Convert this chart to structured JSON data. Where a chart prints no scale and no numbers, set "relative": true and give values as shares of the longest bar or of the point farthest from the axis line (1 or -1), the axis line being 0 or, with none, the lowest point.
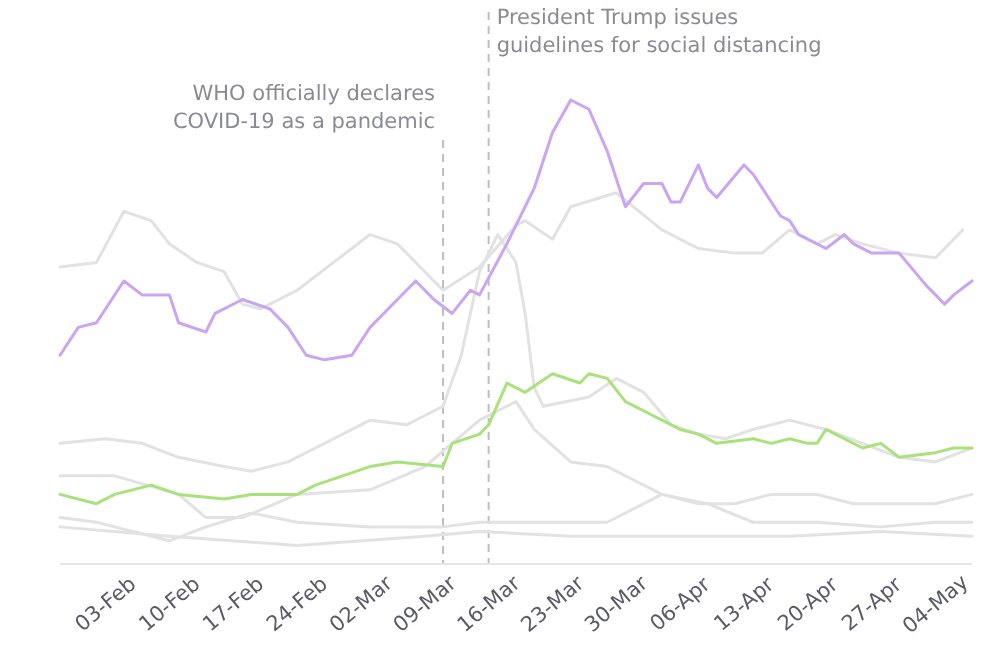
{
  "chart_data": {
    "type": "line",
    "relative": true,
    "grid": false,
    "tick_labels": "x",
    "line_style": "solid",
    "xlim": [
      "--01-29",
      "--05-08"
    ],
    "xticks": [
      {
        "value": "--02-03",
        "label": "03-Feb"
      },
      {
        "value": "--02-10",
        "label": "10-Feb"
      },
      {
        "value": "--02-17",
        "label": "17-Feb"
      },
      {
        "value": "--02-24",
        "label": "24-Feb"
      },
      {
        "value": "--03-02",
        "label": "02-Mar"
      },
      {
        "value": "--03-09",
        "label": "09-Mar"
      },
      {
        "value": "--03-16",
        "label": "16-Mar"
      },
      {
        "value": "--03-23",
        "label": "23-Mar"
      },
      {
        "value": "--03-30",
        "label": "30-Mar"
      },
      {
        "value": "--04-06",
        "label": "06-Apr"
      },
      {
        "value": "--04-13",
        "label": "13-Apr"
      },
      {
        "value": "--04-20",
        "label": "20-Apr"
      },
      {
        "value": "--04-27",
        "label": "27-Apr"
      },
      {
        "value": "--05-04",
        "label": "04-May"
      }
    ],
    "ref_lines": [
      {
        "axis": "x",
        "value": "--03-11",
        "label": "WHO officially declares\nCOVID-19 as a pandemic",
        "color": "#bdbdc4",
        "line_style": "dashed"
      },
      {
        "axis": "x",
        "value": "--03-16",
        "label": "President Trump issues\nguidelines for social distancing",
        "color": "#bdbdc4",
        "line_style": "dashed"
      }
    ],
    "series": [
      {
        "color": "#e2e2e2",
        "x": [
          "--01-29",
          "--02-02",
          "--02-05",
          "--02-08",
          "--02-10",
          "--02-13",
          "--02-16",
          "--02-18",
          "--02-20",
          "--02-24",
          "--02-28",
          "--03-03",
          "--03-06",
          "--03-09",
          "--03-11",
          "--03-15",
          "--03-19",
          "--03-20",
          "--03-23",
          "--03-25",
          "--03-30",
          "--04-04",
          "--04-08",
          "--04-12",
          "--04-15",
          "--04-18",
          "--04-21",
          "--04-23",
          "--04-26",
          "--04-30",
          "--05-04",
          "--05-07"
        ],
        "values": [
          0.64,
          0.65,
          0.76,
          0.74,
          0.69,
          0.65,
          0.63,
          0.56,
          0.55,
          0.59,
          0.65,
          0.71,
          0.69,
          0.63,
          0.59,
          0.64,
          0.73,
          0.74,
          0.7,
          0.77,
          0.8,
          0.72,
          0.68,
          0.67,
          0.67,
          0.72,
          0.69,
          0.71,
          0.69,
          0.67,
          0.66,
          0.72
        ]
      },
      {
        "color": "#e2e2e2",
        "x": [
          "--01-29",
          "--02-03",
          "--02-07",
          "--02-11",
          "--02-16",
          "--02-19",
          "--02-23",
          "--02-28",
          "--03-03",
          "--03-07",
          "--03-11",
          "--03-13",
          "--03-15",
          "--03-17",
          "--03-19",
          "--03-20",
          "--03-21",
          "--03-22",
          "--03-27",
          "--03-30",
          "--04-02",
          "--04-05",
          "--04-08",
          "--04-11",
          "--04-14",
          "--04-18",
          "--04-22",
          "--04-26",
          "--04-30",
          "--05-04",
          "--05-08"
        ],
        "values": [
          0.26,
          0.27,
          0.26,
          0.23,
          0.21,
          0.2,
          0.22,
          0.27,
          0.31,
          0.3,
          0.34,
          0.45,
          0.63,
          0.71,
          0.65,
          0.54,
          0.38,
          0.34,
          0.36,
          0.4,
          0.37,
          0.3,
          0.28,
          0.27,
          0.29,
          0.31,
          0.29,
          0.26,
          0.23,
          0.22,
          0.25
        ]
      },
      {
        "color": "#e2e2e2",
        "x": [
          "--01-29",
          "--02-04",
          "--02-11",
          "--02-14",
          "--02-18",
          "--02-24",
          "--03-03",
          "--03-09",
          "--03-15",
          "--03-19",
          "--03-21",
          "--03-25",
          "--03-29",
          "--04-01",
          "--04-04",
          "--04-08",
          "--04-12",
          "--04-16",
          "--04-21",
          "--04-25",
          "--04-29",
          "--05-04",
          "--05-08"
        ],
        "values": [
          0.19,
          0.19,
          0.15,
          0.1,
          0.1,
          0.15,
          0.16,
          0.21,
          0.31,
          0.35,
          0.29,
          0.22,
          0.21,
          0.18,
          0.15,
          0.13,
          0.13,
          0.15,
          0.15,
          0.13,
          0.13,
          0.13,
          0.15
        ]
      },
      {
        "color": "#e2e2e2",
        "x": [
          "--01-29",
          "--02-02",
          "--02-04",
          "--02-10",
          "--02-14",
          "--02-19",
          "--02-24",
          "--03-03",
          "--03-11",
          "--03-15",
          "--03-22",
          "--03-29",
          "--04-04",
          "--04-09",
          "--04-14",
          "--04-21",
          "--04-28",
          "--05-04",
          "--05-08"
        ],
        "values": [
          0.1,
          0.09,
          0.08,
          0.05,
          0.08,
          0.11,
          0.09,
          0.08,
          0.08,
          0.09,
          0.09,
          0.09,
          0.15,
          0.13,
          0.09,
          0.09,
          0.08,
          0.09,
          0.09
        ]
      },
      {
        "color": "#e2e2e2",
        "x": [
          "--01-29",
          "--02-10",
          "--02-24",
          "--03-09",
          "--03-15",
          "--03-25",
          "--04-04",
          "--04-18",
          "--04-28",
          "--05-08"
        ],
        "values": [
          0.08,
          0.06,
          0.04,
          0.06,
          0.07,
          0.06,
          0.06,
          0.06,
          0.07,
          0.06
        ]
      },
      {
        "color": "#a9e27c",
        "x": [
          "--01-29",
          "--02-02",
          "--02-04",
          "--02-08",
          "--02-11",
          "--02-16",
          "--02-19",
          "--02-24",
          "--02-26",
          "--02-29",
          "--03-03",
          "--03-06",
          "--03-11",
          "--03-12",
          "--03-15",
          "--03-16",
          "--03-18",
          "--03-20",
          "--03-23",
          "--03-26",
          "--03-27",
          "--03-29",
          "--03-31",
          "--04-03",
          "--04-06",
          "--04-08",
          "--04-10",
          "--04-14",
          "--04-16",
          "--04-18",
          "--04-20",
          "--04-21",
          "--04-22",
          "--04-24",
          "--04-26",
          "--04-28",
          "--04-30",
          "--05-04",
          "--05-06",
          "--05-08"
        ],
        "values": [
          0.15,
          0.13,
          0.15,
          0.17,
          0.15,
          0.14,
          0.15,
          0.15,
          0.17,
          0.19,
          0.21,
          0.22,
          0.21,
          0.26,
          0.28,
          0.3,
          0.39,
          0.37,
          0.41,
          0.39,
          0.41,
          0.4,
          0.35,
          0.32,
          0.29,
          0.28,
          0.26,
          0.27,
          0.26,
          0.27,
          0.26,
          0.26,
          0.29,
          0.27,
          0.25,
          0.26,
          0.23,
          0.24,
          0.25,
          0.25
        ]
      },
      {
        "color": "#c9a5f2",
        "x": [
          "--01-29",
          "--01-31",
          "--02-02",
          "--02-05",
          "--02-07",
          "--02-10",
          "--02-11",
          "--02-14",
          "--02-15",
          "--02-18",
          "--02-21",
          "--02-23",
          "--02-25",
          "--02-27",
          "--03-01",
          "--03-03",
          "--03-05",
          "--03-08",
          "--03-10",
          "--03-12",
          "--03-14",
          "--03-15",
          "--03-18",
          "--03-21",
          "--03-23",
          "--03-25",
          "--03-27",
          "--03-29",
          "--03-31",
          "--04-02",
          "--04-04",
          "--04-05",
          "--04-06",
          "--04-08",
          "--04-09",
          "--04-10",
          "--04-13",
          "--04-14",
          "--04-17",
          "--04-18",
          "--04-19",
          "--04-22",
          "--04-24",
          "--04-25",
          "--04-27",
          "--04-30",
          "--05-03",
          "--05-05",
          "--05-06",
          "--05-08"
        ],
        "values": [
          0.45,
          0.51,
          0.52,
          0.61,
          0.58,
          0.58,
          0.52,
          0.5,
          0.54,
          0.57,
          0.55,
          0.51,
          0.45,
          0.44,
          0.45,
          0.51,
          0.55,
          0.61,
          0.57,
          0.54,
          0.59,
          0.58,
          0.69,
          0.81,
          0.93,
          1,
          0.98,
          0.89,
          0.77,
          0.82,
          0.82,
          0.78,
          0.78,
          0.86,
          0.81,
          0.79,
          0.86,
          0.84,
          0.75,
          0.74,
          0.71,
          0.68,
          0.71,
          0.69,
          0.67,
          0.67,
          0.6,
          0.56,
          0.58,
          0.61
        ]
      }
    ]
  }
}
